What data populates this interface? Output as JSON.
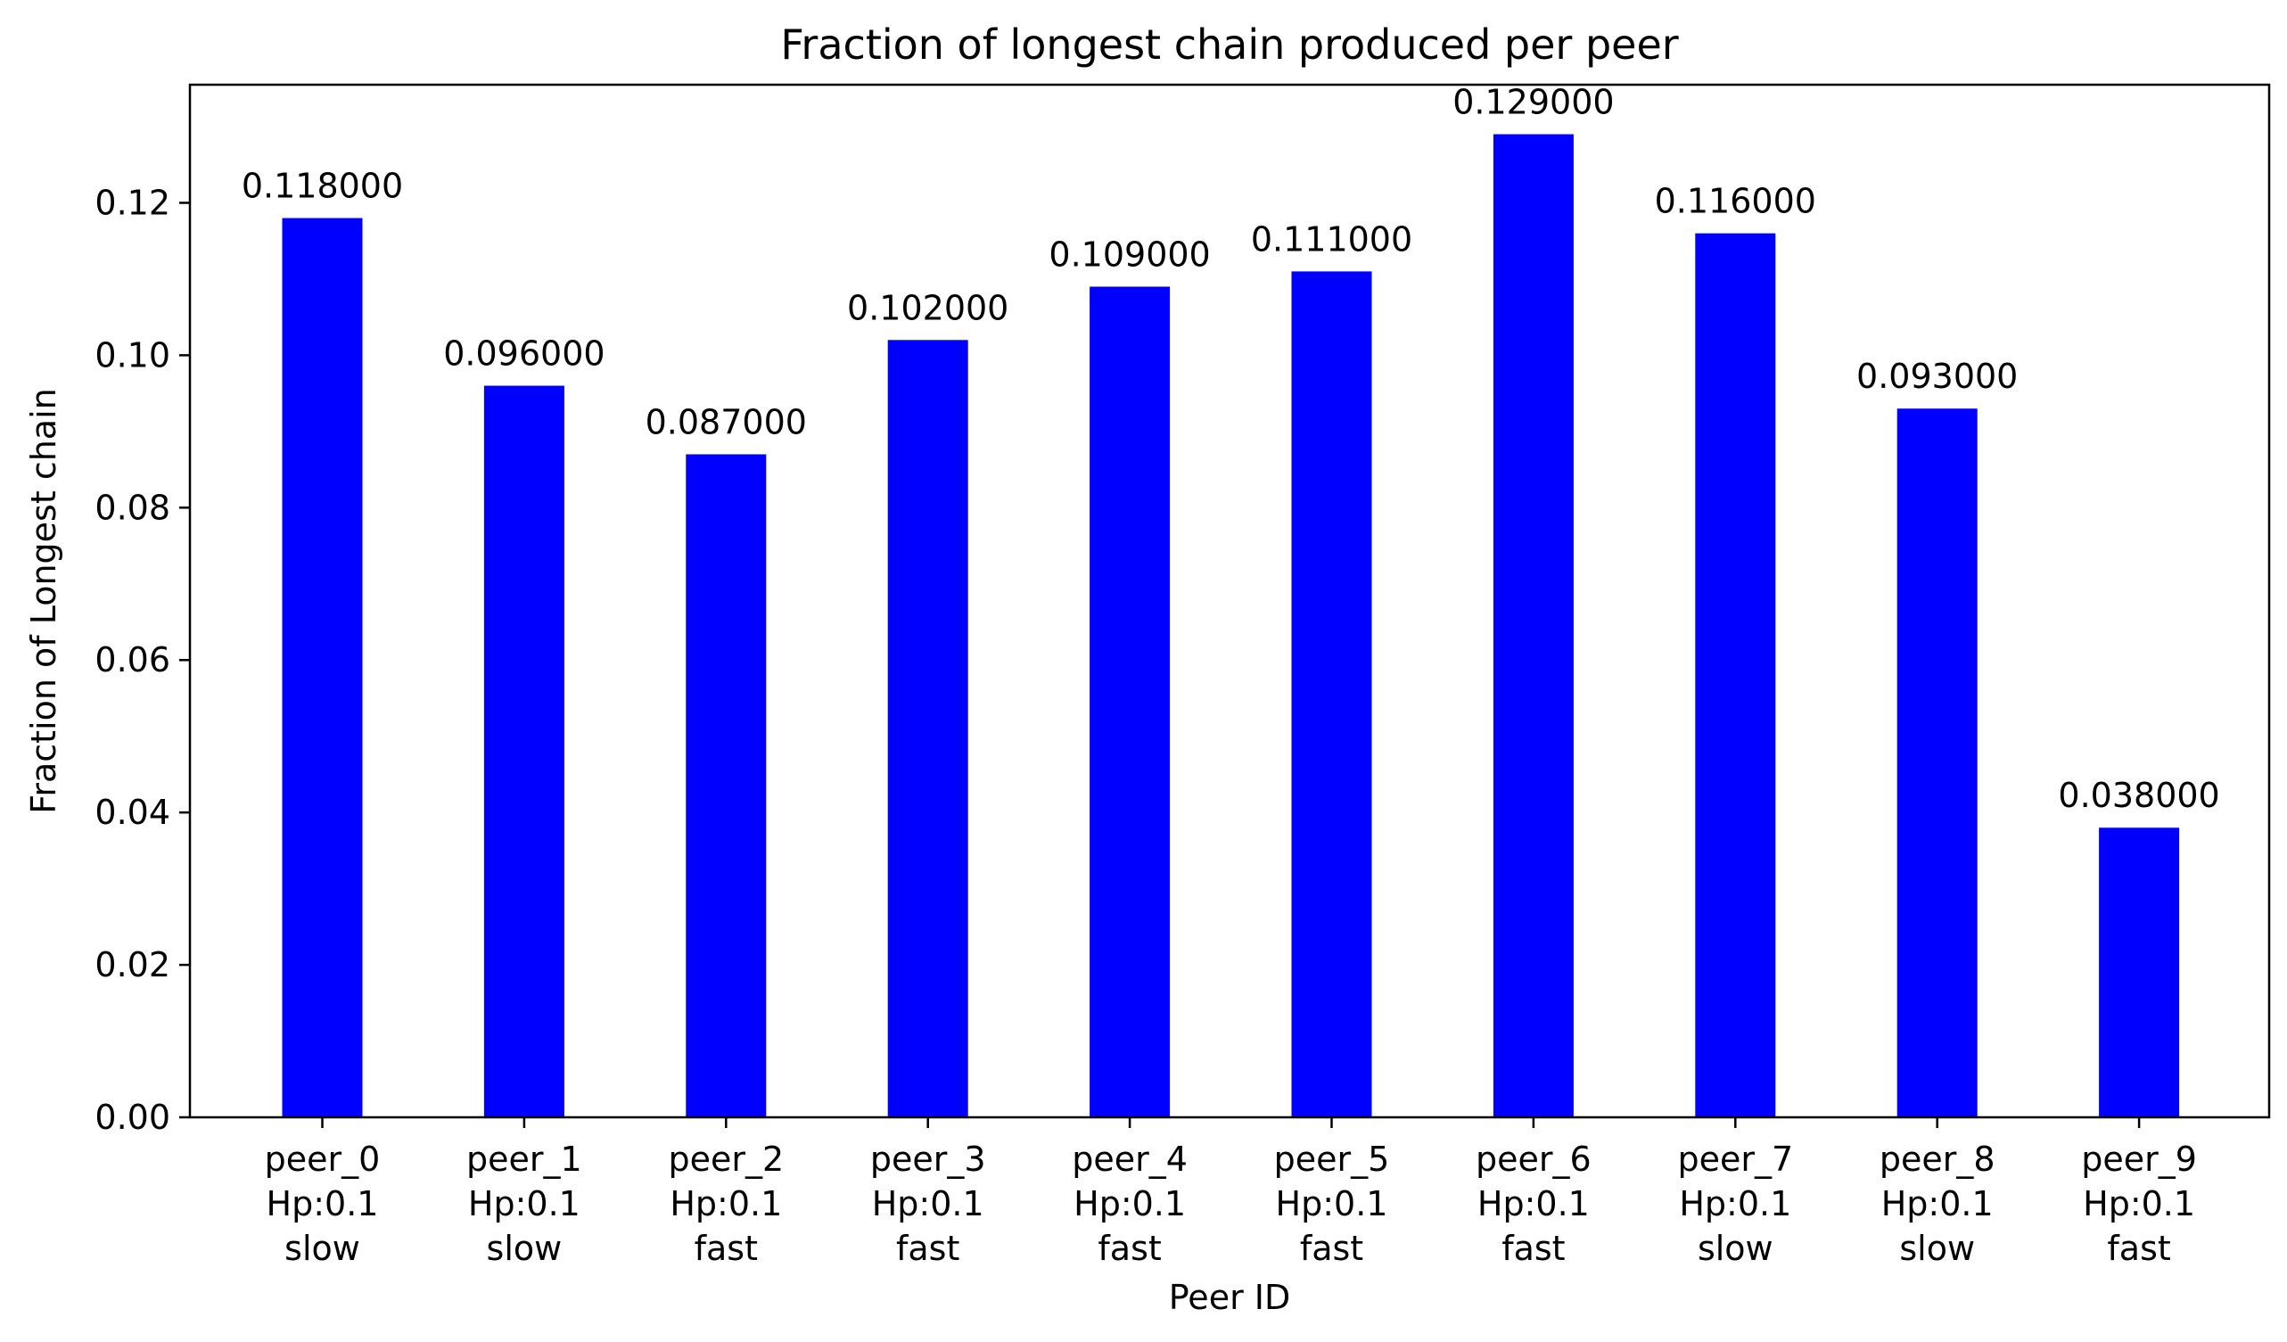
{
  "chart_data": {
    "type": "bar",
    "title": "Fraction of longest chain produced per peer",
    "xlabel": "Peer ID",
    "ylabel": "Fraction of Longest chain",
    "categories": [
      [
        "peer_0",
        "Hp:0.1",
        "slow"
      ],
      [
        "peer_1",
        "Hp:0.1",
        "slow"
      ],
      [
        "peer_2",
        "Hp:0.1",
        "fast"
      ],
      [
        "peer_3",
        "Hp:0.1",
        "fast"
      ],
      [
        "peer_4",
        "Hp:0.1",
        "fast"
      ],
      [
        "peer_5",
        "Hp:0.1",
        "fast"
      ],
      [
        "peer_6",
        "Hp:0.1",
        "fast"
      ],
      [
        "peer_7",
        "Hp:0.1",
        "slow"
      ],
      [
        "peer_8",
        "Hp:0.1",
        "slow"
      ],
      [
        "peer_9",
        "Hp:0.1",
        "fast"
      ]
    ],
    "values": [
      0.118,
      0.096,
      0.087,
      0.102,
      0.109,
      0.111,
      0.129,
      0.116,
      0.093,
      0.038
    ],
    "value_labels": [
      "0.118000",
      "0.096000",
      "0.087000",
      "0.102000",
      "0.109000",
      "0.111000",
      "0.129000",
      "0.116000",
      "0.093000",
      "0.038000"
    ],
    "yticks": [
      0.0,
      0.02,
      0.04,
      0.06,
      0.08,
      0.1,
      0.12
    ],
    "ytick_labels": [
      "0.00",
      "0.02",
      "0.04",
      "0.06",
      "0.08",
      "0.10",
      "0.12"
    ],
    "ylim": [
      0,
      0.1355
    ],
    "bar_color": "#0000ff",
    "grid": false,
    "legend": "none"
  }
}
